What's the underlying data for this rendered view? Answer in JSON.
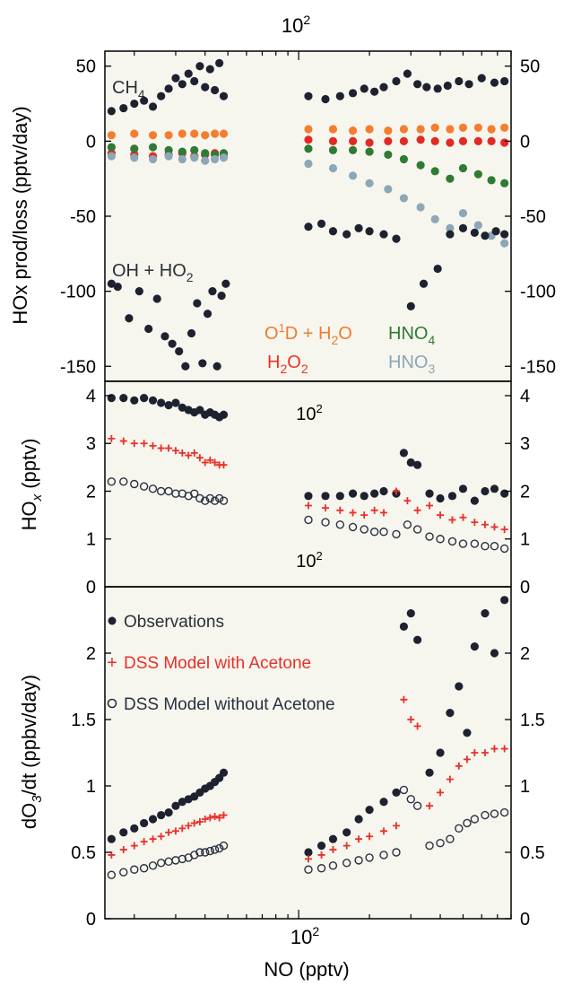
{
  "figure": {
    "xlabel": "NO (pptv)",
    "x_tick_label": "10",
    "x_tick_exp": "2",
    "panel_bg": "#f7f6ee"
  },
  "chart_data": [
    {
      "type": "scatter",
      "panel": "top",
      "ylabel": "HOx prod/loss (pptv/day)",
      "ylim": [
        -160,
        60
      ],
      "yticks": [
        50,
        0,
        -50,
        -100,
        -150
      ],
      "ytick_labels": [
        "50",
        "0",
        "-50",
        "-100",
        "-150"
      ],
      "xscale": "log",
      "xlim": [
        15,
        800
      ],
      "grid": false,
      "annotations": [
        {
          "key": "ch4",
          "text": "CH",
          "sub": "4",
          "color": "#2a2f3a"
        },
        {
          "key": "ohho2",
          "text": "OH + HO",
          "sub": "2",
          "color": "#2a2f3a"
        },
        {
          "key": "o1d",
          "text": "O¹D + H₂O",
          "color": "#f07a2e"
        },
        {
          "key": "h2o2",
          "text": "H₂O₂",
          "color": "#e8302a"
        },
        {
          "key": "hno4",
          "text": "HNO₄",
          "color": "#2e7a32"
        },
        {
          "key": "hno3",
          "text": "HNO₃",
          "color": "#8aa6b6"
        }
      ],
      "series": [
        {
          "key": "CH4",
          "color": "#1e2230",
          "marker": "filled",
          "x": [
            16,
            18,
            20,
            22,
            24,
            26,
            28,
            30,
            32,
            34,
            36,
            38,
            40,
            42,
            44,
            46,
            48,
            110,
            130,
            150,
            170,
            190,
            210,
            230,
            260,
            290,
            320,
            350,
            390,
            430,
            480,
            530,
            600,
            680,
            750
          ],
          "y": [
            20,
            22,
            25,
            27,
            23,
            30,
            35,
            42,
            38,
            45,
            40,
            50,
            36,
            48,
            34,
            52,
            30,
            30,
            28,
            30,
            32,
            35,
            33,
            36,
            40,
            45,
            38,
            36,
            35,
            37,
            40,
            38,
            42,
            39,
            40
          ]
        },
        {
          "key": "O1D + H2O",
          "color": "#f47d2f",
          "marker": "filled",
          "x": [
            16,
            20,
            24,
            28,
            32,
            36,
            40,
            44,
            48,
            110,
            140,
            170,
            200,
            240,
            280,
            330,
            380,
            440,
            500,
            580,
            660,
            750
          ],
          "y": [
            4,
            5,
            4,
            4,
            5,
            5,
            4,
            5,
            5,
            8,
            8,
            7,
            8,
            7,
            8,
            8,
            9,
            8,
            9,
            9,
            8,
            9
          ]
        },
        {
          "key": "H2O2",
          "color": "#e02a25",
          "marker": "filled",
          "x": [
            16,
            20,
            24,
            28,
            32,
            36,
            40,
            44,
            48,
            110,
            140,
            170,
            200,
            240,
            280,
            330,
            380,
            440,
            500,
            580,
            660,
            750
          ],
          "y": [
            -8,
            -9,
            -10,
            -9,
            -8,
            -10,
            -9,
            -8,
            -10,
            1,
            0,
            0,
            -1,
            0,
            0,
            1,
            0,
            -1,
            0,
            0,
            0,
            -1
          ]
        },
        {
          "key": "HNO4",
          "color": "#2f7a34",
          "marker": "filled",
          "x": [
            16,
            20,
            24,
            28,
            32,
            36,
            40,
            44,
            48,
            110,
            140,
            170,
            200,
            240,
            280,
            330,
            380,
            440,
            500,
            580,
            660,
            750
          ],
          "y": [
            -4,
            -5,
            -4,
            -6,
            -7,
            -6,
            -8,
            -9,
            -8,
            -5,
            -6,
            -6,
            -7,
            -9,
            -12,
            -16,
            -20,
            -25,
            -18,
            -22,
            -26,
            -28
          ]
        },
        {
          "key": "HNO3",
          "color": "#8ca8b8",
          "marker": "filled",
          "x": [
            16,
            20,
            24,
            28,
            32,
            36,
            40,
            44,
            48,
            110,
            140,
            170,
            200,
            240,
            280,
            330,
            380,
            440,
            500,
            580,
            660,
            750
          ],
          "y": [
            -10,
            -11,
            -12,
            -10,
            -12,
            -11,
            -13,
            -12,
            -11,
            -15,
            -18,
            -23,
            -28,
            -32,
            -38,
            -44,
            -52,
            -58,
            -48,
            -56,
            -63,
            -68
          ]
        },
        {
          "key": "OH + HO2",
          "color": "#1e2230",
          "marker": "filled",
          "x": [
            16,
            17,
            19,
            21,
            23,
            25,
            27,
            29,
            31,
            33,
            35,
            37,
            39,
            41,
            43,
            45,
            47,
            49,
            110,
            125,
            140,
            160,
            180,
            200,
            230,
            260,
            300,
            340,
            390,
            440,
            500,
            560,
            620,
            690,
            750
          ],
          "y": [
            -95,
            -97,
            -118,
            -100,
            -125,
            -105,
            -130,
            -135,
            -140,
            -150,
            -128,
            -108,
            -148,
            -115,
            -100,
            -150,
            -103,
            -95,
            -57,
            -55,
            -60,
            -62,
            -58,
            -60,
            -62,
            -65,
            -110,
            -95,
            -85,
            -62,
            -58,
            -61,
            -63,
            -60,
            -62
          ]
        }
      ]
    },
    {
      "type": "scatter",
      "panel": "middle",
      "ylabel": "HOx (pptv)",
      "ylim": [
        0,
        4.3
      ],
      "yticks": [
        4,
        3,
        2,
        1,
        0
      ],
      "ytick_labels": [
        "4",
        "3",
        "2",
        "1",
        "0"
      ],
      "xscale": "log",
      "xlim": [
        15,
        800
      ],
      "inner_labels": [
        "10²",
        "10²"
      ],
      "series": [
        {
          "key": "Observations",
          "color": "#1e2230",
          "marker": "filled",
          "x": [
            16,
            18,
            20,
            22,
            24,
            26,
            28,
            30,
            32,
            34,
            36,
            38,
            40,
            42,
            44,
            46,
            48,
            110,
            130,
            150,
            170,
            190,
            210,
            230,
            260,
            280,
            300,
            320,
            360,
            400,
            450,
            500,
            560,
            620,
            680,
            750
          ],
          "y": [
            3.95,
            3.95,
            3.9,
            3.95,
            3.9,
            3.85,
            3.8,
            3.85,
            3.75,
            3.7,
            3.65,
            3.7,
            3.6,
            3.65,
            3.6,
            3.55,
            3.6,
            1.9,
            1.9,
            1.9,
            1.95,
            1.9,
            1.95,
            2.0,
            1.95,
            2.8,
            2.6,
            2.55,
            1.95,
            1.85,
            1.9,
            2.05,
            1.8,
            2.0,
            2.05,
            1.95
          ]
        },
        {
          "key": "DSS Model with Acetone",
          "color": "#e8302a",
          "marker": "plus",
          "x": [
            16,
            18,
            20,
            22,
            24,
            26,
            28,
            30,
            32,
            34,
            36,
            38,
            40,
            42,
            44,
            46,
            48,
            110,
            130,
            150,
            170,
            190,
            210,
            230,
            260,
            290,
            320,
            360,
            400,
            450,
            500,
            560,
            620,
            680,
            750
          ],
          "y": [
            3.1,
            3.05,
            3.0,
            3.0,
            2.95,
            2.9,
            2.9,
            2.85,
            2.8,
            2.75,
            2.8,
            2.7,
            2.6,
            2.65,
            2.6,
            2.55,
            2.55,
            1.7,
            1.65,
            1.6,
            1.55,
            1.5,
            1.6,
            1.55,
            2.0,
            1.8,
            1.6,
            1.7,
            1.5,
            1.4,
            1.45,
            1.35,
            1.3,
            1.25,
            1.2
          ]
        },
        {
          "key": "DSS Model without Acetone",
          "color": "#2a3042",
          "marker": "open",
          "x": [
            16,
            18,
            20,
            22,
            24,
            26,
            28,
            30,
            32,
            34,
            36,
            38,
            40,
            42,
            44,
            46,
            48,
            110,
            130,
            150,
            170,
            190,
            210,
            230,
            260,
            290,
            320,
            360,
            400,
            450,
            500,
            560,
            620,
            680,
            750
          ],
          "y": [
            2.2,
            2.2,
            2.15,
            2.1,
            2.05,
            2.0,
            2.0,
            1.95,
            1.95,
            1.9,
            1.95,
            1.85,
            1.8,
            1.85,
            1.8,
            1.85,
            1.8,
            1.4,
            1.35,
            1.3,
            1.25,
            1.2,
            1.15,
            1.15,
            1.1,
            1.3,
            1.2,
            1.05,
            1.0,
            0.95,
            0.9,
            0.9,
            0.85,
            0.85,
            0.8
          ]
        }
      ]
    },
    {
      "type": "scatter",
      "panel": "bottom",
      "ylabel": "dO₃/dt (ppbv/day)",
      "ylim": [
        0,
        2.5
      ],
      "yticks": [
        0,
        0.5,
        1,
        1.5,
        2
      ],
      "ytick_labels": [
        "0",
        "0.5",
        "1",
        "1.5",
        "2"
      ],
      "xscale": "log",
      "xlim": [
        15,
        800
      ],
      "legend": {
        "placement": "top-left",
        "entries": [
          {
            "label": "Observations",
            "marker": "filled",
            "color": "#1e2230"
          },
          {
            "label": "DSS Model with Acetone",
            "marker": "plus",
            "color": "#e8302a"
          },
          {
            "label": "DSS Model without Acetone",
            "marker": "open",
            "color": "#2a3042"
          }
        ]
      },
      "series": [
        {
          "key": "Observations",
          "color": "#1e2230",
          "marker": "filled",
          "x": [
            16,
            18,
            20,
            22,
            24,
            26,
            28,
            30,
            32,
            34,
            36,
            38,
            40,
            42,
            44,
            46,
            48,
            110,
            125,
            140,
            160,
            180,
            200,
            230,
            260,
            280,
            300,
            320,
            360,
            400,
            440,
            480,
            520,
            560,
            620,
            680,
            750
          ],
          "y": [
            0.6,
            0.65,
            0.68,
            0.72,
            0.75,
            0.78,
            0.8,
            0.85,
            0.88,
            0.9,
            0.92,
            0.95,
            0.98,
            1.0,
            1.03,
            1.06,
            1.1,
            0.5,
            0.55,
            0.6,
            0.65,
            0.75,
            0.82,
            0.88,
            0.95,
            2.2,
            2.3,
            2.1,
            1.1,
            1.25,
            1.55,
            1.75,
            1.4,
            2.05,
            2.3,
            2.0,
            2.4
          ]
        },
        {
          "key": "DSS Model with Acetone",
          "color": "#e8302a",
          "marker": "plus",
          "x": [
            16,
            18,
            20,
            22,
            24,
            26,
            28,
            30,
            32,
            34,
            36,
            38,
            40,
            42,
            44,
            46,
            48,
            110,
            125,
            140,
            160,
            180,
            200,
            230,
            260,
            280,
            300,
            320,
            360,
            400,
            440,
            480,
            520,
            560,
            620,
            680,
            750
          ],
          "y": [
            0.48,
            0.52,
            0.55,
            0.58,
            0.6,
            0.62,
            0.65,
            0.66,
            0.68,
            0.7,
            0.72,
            0.73,
            0.75,
            0.76,
            0.77,
            0.76,
            0.78,
            0.45,
            0.48,
            0.52,
            0.55,
            0.6,
            0.62,
            0.66,
            0.7,
            1.65,
            1.5,
            1.45,
            0.85,
            0.95,
            1.05,
            1.15,
            1.2,
            1.25,
            1.25,
            1.28,
            1.28
          ]
        },
        {
          "key": "DSS Model without Acetone",
          "color": "#2a3042",
          "marker": "open",
          "x": [
            16,
            18,
            20,
            22,
            24,
            26,
            28,
            30,
            32,
            34,
            36,
            38,
            40,
            42,
            44,
            46,
            48,
            110,
            125,
            140,
            160,
            180,
            200,
            230,
            260,
            280,
            300,
            320,
            360,
            400,
            440,
            480,
            520,
            560,
            620,
            680,
            750
          ],
          "y": [
            0.33,
            0.35,
            0.37,
            0.38,
            0.4,
            0.42,
            0.43,
            0.44,
            0.45,
            0.46,
            0.48,
            0.5,
            0.5,
            0.51,
            0.52,
            0.53,
            0.55,
            0.37,
            0.38,
            0.4,
            0.42,
            0.44,
            0.46,
            0.48,
            0.5,
            0.97,
            0.9,
            0.85,
            0.55,
            0.57,
            0.6,
            0.68,
            0.72,
            0.75,
            0.78,
            0.79,
            0.8
          ]
        }
      ]
    }
  ]
}
